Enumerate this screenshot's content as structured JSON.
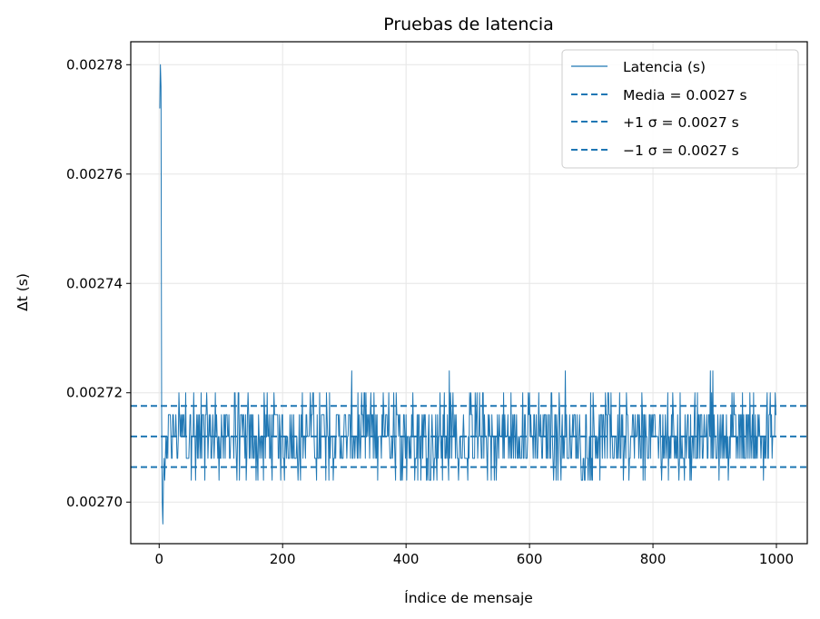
{
  "chart_data": {
    "type": "line",
    "title": "Pruebas de latencia",
    "xlabel": "Índice de mensaje",
    "ylabel": "Δt (s)",
    "xlim": [
      -46,
      1050
    ],
    "ylim": [
      0.0026924,
      0.0027842
    ],
    "x_ticks": [
      0,
      200,
      400,
      600,
      800,
      1000
    ],
    "x_tick_labels": [
      "0",
      "200",
      "400",
      "600",
      "800",
      "1000"
    ],
    "y_ticks": [
      0.0027,
      0.00272,
      0.00274,
      0.00276,
      0.00278
    ],
    "y_tick_labels": [
      "0.00270",
      "0.00272",
      "0.00274",
      "0.00276",
      "0.00278"
    ],
    "grid": true,
    "legend_position": "top-right",
    "color": "#1f77b4",
    "series": [
      {
        "name": "Latencia (s)",
        "style": "solid",
        "head": [
          [
            1,
            0.002772
          ],
          [
            2,
            0.00278
          ],
          [
            3,
            0.002776
          ],
          [
            4,
            0.002716
          ],
          [
            5,
            0.0027
          ],
          [
            6,
            0.002696
          ],
          [
            7,
            0.002704
          ],
          [
            8,
            0.002708
          ],
          [
            9,
            0.002704
          ],
          [
            10,
            0.002708
          ],
          [
            11,
            0.002712
          ],
          [
            12,
            0.002708
          ],
          [
            13,
            0.002712
          ]
        ],
        "n_points": 1000,
        "typical_range": [
          0.002704,
          0.00272
        ],
        "peaks": [
          [
            312,
            0.002724
          ],
          [
            470,
            0.002724
          ],
          [
            658,
            0.002724
          ],
          [
            893,
            0.002724
          ],
          [
            897,
            0.002724
          ]
        ]
      },
      {
        "name": "Media = 0.0027 s",
        "style": "dashed",
        "value": 0.002712
      },
      {
        "name": "+1 σ = 0.0027 s",
        "style": "dashed",
        "value": 0.0027176
      },
      {
        "name": "−1 σ = 0.0027 s",
        "style": "dashed",
        "value": 0.0027064
      }
    ]
  }
}
